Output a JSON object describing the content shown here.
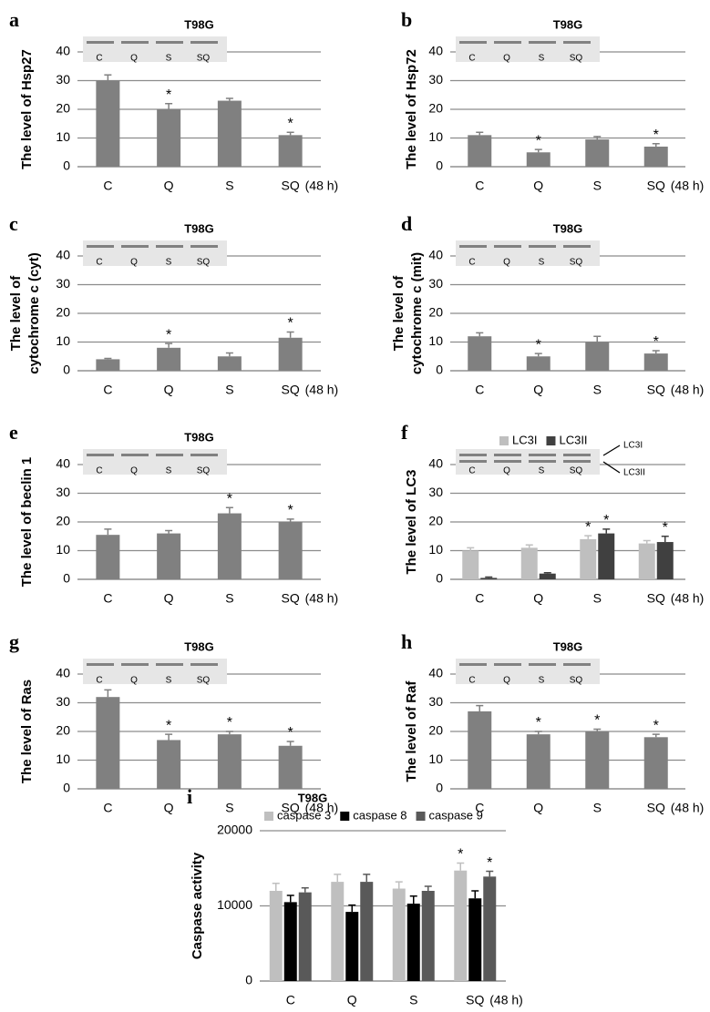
{
  "chart_data": [
    {
      "type": "bar",
      "panel": "a",
      "title": "T98G",
      "ylabel": [
        "The level of Hsp27"
      ],
      "categories": [
        "C",
        "Q",
        "S",
        "SQ"
      ],
      "x_note": "(48 h)",
      "blot_labels": [
        "C",
        "Q",
        "S",
        "SQ"
      ],
      "color": "#808080",
      "values": [
        30,
        20,
        23,
        11
      ],
      "errors": [
        2,
        2,
        0.8,
        1
      ],
      "significance": [
        null,
        "*",
        null,
        "*"
      ],
      "ylim": [
        0,
        40
      ],
      "yticks": [
        0,
        10,
        20,
        30,
        40
      ],
      "grid": true
    },
    {
      "type": "bar",
      "panel": "b",
      "title": "T98G",
      "ylabel": [
        "The level of Hsp72"
      ],
      "categories": [
        "C",
        "Q",
        "S",
        "SQ"
      ],
      "x_note": "(48 h)",
      "blot_labels": [
        "C",
        "Q",
        "S",
        "SQ"
      ],
      "color": "#808080",
      "values": [
        11,
        5,
        9.5,
        7
      ],
      "errors": [
        1,
        1,
        1,
        1
      ],
      "significance": [
        null,
        "*",
        null,
        "*"
      ],
      "ylim": [
        0,
        40
      ],
      "yticks": [
        0,
        10,
        20,
        30,
        40
      ],
      "grid": true
    },
    {
      "type": "bar",
      "panel": "c",
      "title": "T98G",
      "ylabel": [
        "The level of",
        "cytochrome c (cyt)"
      ],
      "categories": [
        "C",
        "Q",
        "S",
        "SQ"
      ],
      "x_note": "(48 h)",
      "blot_labels": [
        "C",
        "Q",
        "S",
        "SQ"
      ],
      "color": "#808080",
      "values": [
        4,
        8,
        5,
        11.5
      ],
      "errors": [
        0.3,
        1.5,
        1.2,
        2
      ],
      "significance": [
        null,
        "*",
        null,
        "*"
      ],
      "ylim": [
        0,
        40
      ],
      "yticks": [
        0,
        10,
        20,
        30,
        40
      ],
      "grid": true
    },
    {
      "type": "bar",
      "panel": "d",
      "title": "T98G",
      "ylabel": [
        "The level of",
        "cytochrome c (mit)"
      ],
      "categories": [
        "C",
        "Q",
        "S",
        "SQ"
      ],
      "x_note": "(48 h)",
      "blot_labels": [
        "C",
        "Q",
        "S",
        "SQ"
      ],
      "color": "#808080",
      "values": [
        12,
        5,
        10,
        6
      ],
      "errors": [
        1.2,
        1,
        2,
        1
      ],
      "significance": [
        null,
        "*",
        null,
        "*"
      ],
      "ylim": [
        0,
        40
      ],
      "yticks": [
        0,
        10,
        20,
        30,
        40
      ],
      "grid": true
    },
    {
      "type": "bar",
      "panel": "e",
      "title": "T98G",
      "ylabel": [
        "The level of beclin 1"
      ],
      "categories": [
        "C",
        "Q",
        "S",
        "SQ"
      ],
      "x_note": "(48 h)",
      "blot_labels": [
        "C",
        "Q",
        "S",
        "SQ"
      ],
      "color": "#808080",
      "values": [
        15.5,
        16,
        23,
        20
      ],
      "errors": [
        2,
        1,
        2,
        1
      ],
      "significance": [
        null,
        null,
        "*",
        "*"
      ],
      "ylim": [
        0,
        40
      ],
      "yticks": [
        0,
        10,
        20,
        30,
        40
      ],
      "grid": true
    },
    {
      "type": "bar",
      "panel": "f",
      "ylabel": [
        "The level of LC3"
      ],
      "categories": [
        "C",
        "Q",
        "S",
        "SQ"
      ],
      "x_note": "(48 h)",
      "blot_labels": [
        "C",
        "Q",
        "S",
        "SQ"
      ],
      "blot_bands": [
        "LC3I",
        "LC3II"
      ],
      "legend": "top",
      "series": [
        {
          "name": "LC3I",
          "color": "#bfbfbf",
          "values": [
            10,
            11,
            14,
            12.5
          ],
          "errors": [
            1,
            1,
            1.2,
            1
          ],
          "significance": [
            null,
            null,
            "*",
            null
          ]
        },
        {
          "name": "LC3II",
          "color": "#404040",
          "values": [
            0.5,
            2,
            16,
            13
          ],
          "errors": [
            0.3,
            0.3,
            1.5,
            2
          ],
          "significance": [
            null,
            null,
            "*",
            "*"
          ]
        }
      ],
      "ylim": [
        0,
        40
      ],
      "yticks": [
        0,
        10,
        20,
        30,
        40
      ],
      "grid": true
    },
    {
      "type": "bar",
      "panel": "g",
      "title": "T98G",
      "ylabel": [
        "The level of Ras"
      ],
      "categories": [
        "C",
        "Q",
        "S",
        "SQ"
      ],
      "x_note": "(48 h)",
      "blot_labels": [
        "C",
        "Q",
        "S",
        "SQ"
      ],
      "color": "#808080",
      "values": [
        32,
        17,
        19,
        15
      ],
      "errors": [
        2.5,
        2,
        1,
        1.5
      ],
      "significance": [
        null,
        "*",
        "*",
        "*"
      ],
      "ylim": [
        0,
        40
      ],
      "yticks": [
        0,
        10,
        20,
        30,
        40
      ],
      "grid": true
    },
    {
      "type": "bar",
      "panel": "h",
      "title": "T98G",
      "ylabel": [
        "The level of Raf"
      ],
      "categories": [
        "C",
        "Q",
        "S",
        "SQ"
      ],
      "x_note": "(48 h)",
      "blot_labels": [
        "C",
        "Q",
        "S",
        "SQ"
      ],
      "color": "#808080",
      "values": [
        27,
        19,
        20,
        18
      ],
      "errors": [
        2,
        1,
        0.8,
        1
      ],
      "significance": [
        null,
        "*",
        "*",
        "*"
      ],
      "ylim": [
        0,
        40
      ],
      "yticks": [
        0,
        10,
        20,
        30,
        40
      ],
      "grid": true
    },
    {
      "type": "bar",
      "panel": "i",
      "title": "T98G",
      "ylabel": [
        "Caspase activity"
      ],
      "categories": [
        "C",
        "Q",
        "S",
        "SQ"
      ],
      "x_note": "(48 h)",
      "legend": "top",
      "series": [
        {
          "name": "caspase 3",
          "color": "#bfbfbf",
          "values": [
            12000,
            13200,
            12300,
            14700
          ],
          "errors": [
            1000,
            1000,
            900,
            1000
          ],
          "significance": [
            null,
            null,
            null,
            "*"
          ]
        },
        {
          "name": "caspase 8",
          "color": "#000000",
          "values": [
            10500,
            9200,
            10300,
            11000
          ],
          "errors": [
            900,
            900,
            1000,
            1000
          ],
          "significance": [
            null,
            null,
            null,
            null
          ]
        },
        {
          "name": "caspase 9",
          "color": "#595959",
          "values": [
            11800,
            13200,
            12000,
            13900
          ],
          "errors": [
            600,
            1000,
            600,
            700
          ],
          "significance": [
            null,
            null,
            null,
            "*"
          ]
        }
      ],
      "ylim": [
        0,
        20000
      ],
      "yticks": [
        0,
        10000,
        20000
      ],
      "grid": true
    }
  ]
}
